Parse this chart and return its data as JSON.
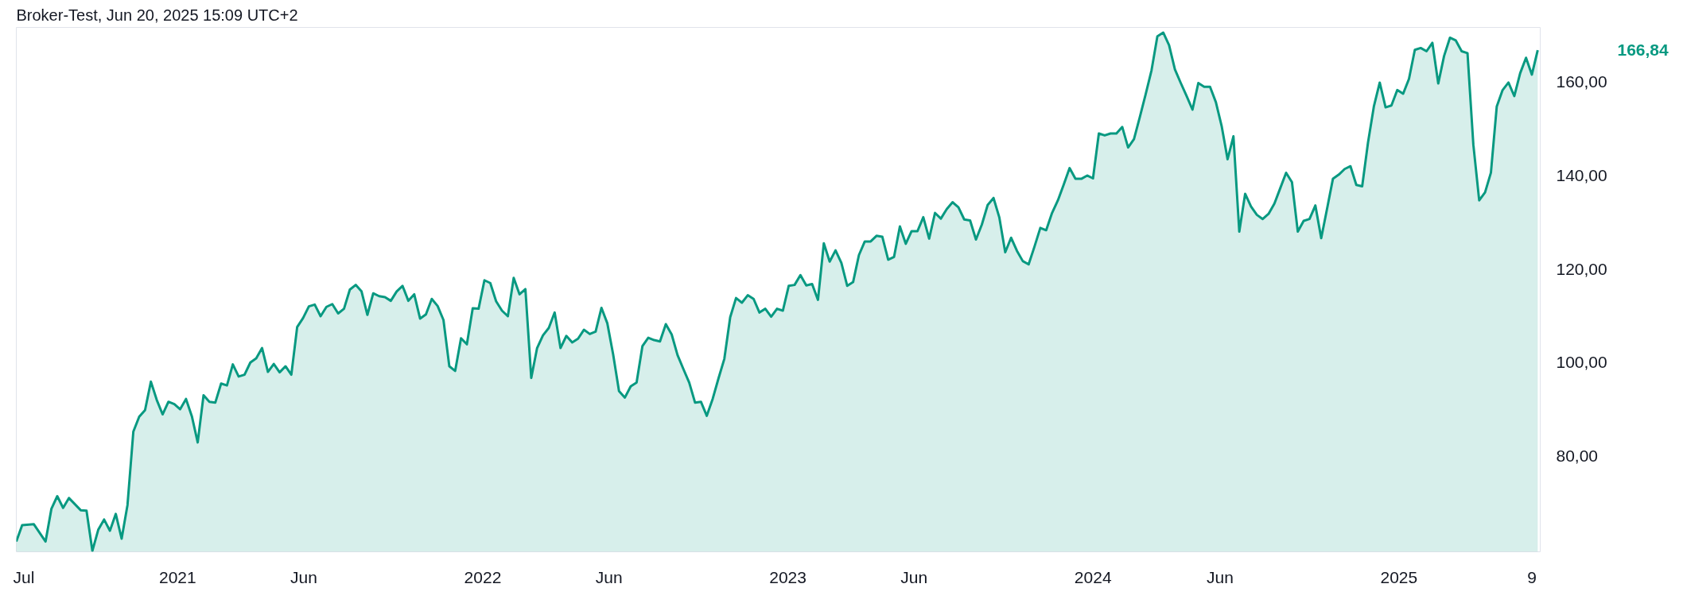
{
  "chart_data": {
    "type": "area",
    "title": "Broker-Test, Jun 20, 2025 15:09 UTC+2",
    "xlim": [
      "2020-06-22",
      "2025-06-19"
    ],
    "ylim": [
      59.5,
      171.7
    ],
    "xticks": [
      {
        "value": "2020-07-01",
        "label": "Jul"
      },
      {
        "value": "2021-01-01",
        "label": "2021"
      },
      {
        "value": "2021-06-01",
        "label": "Jun"
      },
      {
        "value": "2022-01-01",
        "label": "2022"
      },
      {
        "value": "2022-06-01",
        "label": "Jun"
      },
      {
        "value": "2023-01-01",
        "label": "2023"
      },
      {
        "value": "2023-06-01",
        "label": "Jun"
      },
      {
        "value": "2024-01-01",
        "label": "2024"
      },
      {
        "value": "2024-06-01",
        "label": "Jun"
      },
      {
        "value": "2025-01-01",
        "label": "2025"
      },
      {
        "value": "2025-06-09",
        "label": "9"
      }
    ],
    "yticks": [
      {
        "value": 80,
        "label": "80,00"
      },
      {
        "value": 100,
        "label": "100,00"
      },
      {
        "value": 120,
        "label": "120,00"
      },
      {
        "value": 140,
        "label": "140,00"
      },
      {
        "value": 160,
        "label": "160,00"
      }
    ],
    "annotations": [
      "166,84"
    ],
    "series": [
      {
        "color": "#089981",
        "x": [
          "2020-06-22",
          "2020-06-29",
          "2020-07-13",
          "2020-07-27",
          "2020-08-03",
          "2020-08-10",
          "2020-08-17",
          "2020-08-24",
          "2020-09-07",
          "2020-09-14",
          "2020-09-21",
          "2020-09-28",
          "2020-10-05",
          "2020-10-12",
          "2020-10-19",
          "2020-10-26",
          "2020-11-02",
          "2020-11-09",
          "2020-11-16",
          "2020-11-23",
          "2020-11-30",
          "2020-12-07",
          "2020-12-14",
          "2020-12-21",
          "2020-12-28",
          "2021-01-04",
          "2021-01-11",
          "2021-01-18",
          "2021-01-25",
          "2021-02-01",
          "2021-02-08",
          "2021-02-15",
          "2021-02-22",
          "2021-03-01",
          "2021-03-08",
          "2021-03-15",
          "2021-03-22",
          "2021-03-29",
          "2021-04-05",
          "2021-04-12",
          "2021-04-19",
          "2021-04-26",
          "2021-05-03",
          "2021-05-10",
          "2021-05-17",
          "2021-05-24",
          "2021-05-31",
          "2021-06-07",
          "2021-06-14",
          "2021-06-21",
          "2021-06-28",
          "2021-07-05",
          "2021-07-12",
          "2021-07-19",
          "2021-07-26",
          "2021-08-02",
          "2021-08-09",
          "2021-08-16",
          "2021-08-23",
          "2021-08-30",
          "2021-09-06",
          "2021-09-13",
          "2021-09-20",
          "2021-09-27",
          "2021-10-04",
          "2021-10-11",
          "2021-10-18",
          "2021-10-25",
          "2021-11-01",
          "2021-11-08",
          "2021-11-15",
          "2021-11-22",
          "2021-11-29",
          "2021-12-06",
          "2021-12-13",
          "2021-12-20",
          "2021-12-27",
          "2022-01-03",
          "2022-01-10",
          "2022-01-17",
          "2022-01-24",
          "2022-01-31",
          "2022-02-07",
          "2022-02-14",
          "2022-02-21",
          "2022-02-28",
          "2022-03-07",
          "2022-03-14",
          "2022-03-21",
          "2022-03-28",
          "2022-04-04",
          "2022-04-11",
          "2022-04-18",
          "2022-04-25",
          "2022-05-02",
          "2022-05-09",
          "2022-05-16",
          "2022-05-23",
          "2022-05-30",
          "2022-06-06",
          "2022-06-13",
          "2022-06-20",
          "2022-06-27",
          "2022-07-04",
          "2022-07-11",
          "2022-07-18",
          "2022-07-25",
          "2022-08-01",
          "2022-08-08",
          "2022-08-15",
          "2022-08-22",
          "2022-08-29",
          "2022-09-05",
          "2022-09-12",
          "2022-09-19",
          "2022-09-26",
          "2022-10-03",
          "2022-10-10",
          "2022-10-17",
          "2022-10-24",
          "2022-10-31",
          "2022-11-07",
          "2022-11-14",
          "2022-11-21",
          "2022-11-28",
          "2022-12-05",
          "2022-12-12",
          "2022-12-19",
          "2022-12-26",
          "2023-01-02",
          "2023-01-09",
          "2023-01-16",
          "2023-01-23",
          "2023-01-30",
          "2023-02-06",
          "2023-02-13",
          "2023-02-20",
          "2023-02-27",
          "2023-03-06",
          "2023-03-13",
          "2023-03-20",
          "2023-03-27",
          "2023-04-03",
          "2023-04-10",
          "2023-04-17",
          "2023-04-24",
          "2023-05-01",
          "2023-05-08",
          "2023-05-15",
          "2023-05-22",
          "2023-05-29",
          "2023-06-05",
          "2023-06-12",
          "2023-06-19",
          "2023-06-26",
          "2023-07-03",
          "2023-07-10",
          "2023-07-17",
          "2023-07-24",
          "2023-07-31",
          "2023-08-07",
          "2023-08-14",
          "2023-08-21",
          "2023-08-28",
          "2023-09-04",
          "2023-09-11",
          "2023-09-18",
          "2023-09-25",
          "2023-10-02",
          "2023-10-09",
          "2023-10-16",
          "2023-10-23",
          "2023-10-30",
          "2023-11-06",
          "2023-11-13",
          "2023-11-20",
          "2023-11-27",
          "2023-12-04",
          "2023-12-11",
          "2023-12-18",
          "2023-12-25",
          "2024-01-01",
          "2024-01-08",
          "2024-01-15",
          "2024-01-22",
          "2024-01-29",
          "2024-02-05",
          "2024-02-12",
          "2024-02-19",
          "2024-02-26",
          "2024-03-04",
          "2024-03-11",
          "2024-03-18",
          "2024-03-25",
          "2024-04-01",
          "2024-04-08",
          "2024-04-15",
          "2024-04-22",
          "2024-04-29",
          "2024-05-06",
          "2024-05-13",
          "2024-05-20",
          "2024-05-27",
          "2024-06-03",
          "2024-06-10",
          "2024-06-17",
          "2024-06-24",
          "2024-07-01",
          "2024-07-08",
          "2024-07-15",
          "2024-07-22",
          "2024-07-29",
          "2024-08-05",
          "2024-08-12",
          "2024-08-19",
          "2024-08-26",
          "2024-09-02",
          "2024-09-09",
          "2024-09-16",
          "2024-09-23",
          "2024-09-30",
          "2024-10-07",
          "2024-10-14",
          "2024-10-21",
          "2024-10-28",
          "2024-11-04",
          "2024-11-11",
          "2024-11-18",
          "2024-11-25",
          "2024-12-02",
          "2024-12-09",
          "2024-12-16",
          "2024-12-23",
          "2024-12-30",
          "2025-01-06",
          "2025-01-13",
          "2025-01-20",
          "2025-01-27",
          "2025-02-03",
          "2025-02-10",
          "2025-02-17",
          "2025-02-24",
          "2025-03-03",
          "2025-03-10",
          "2025-03-17",
          "2025-03-24",
          "2025-03-31",
          "2025-04-07",
          "2025-04-14",
          "2025-04-21",
          "2025-04-28",
          "2025-05-05",
          "2025-05-12",
          "2025-05-19",
          "2025-05-26",
          "2025-06-02",
          "2025-06-09",
          "2025-06-16"
        ],
        "values": [
          61.7,
          65.2,
          65.4,
          61.7,
          68.7,
          71.4,
          68.9,
          71.0,
          68.4,
          68.3,
          59.7,
          64.2,
          66.4,
          64.0,
          67.6,
          62.3,
          69.5,
          85.2,
          88.4,
          89.8,
          95.9,
          92.0,
          88.9,
          91.6,
          91.1,
          90.0,
          92.2,
          88.5,
          82.9,
          93.0,
          91.6,
          91.4,
          95.5,
          95.1,
          99.6,
          97.0,
          97.4,
          100.0,
          100.9,
          103.1,
          98.0,
          99.7,
          97.9,
          99.2,
          97.4,
          107.6,
          109.5,
          112.0,
          112.4,
          109.9,
          111.9,
          112.5,
          110.5,
          111.5,
          115.6,
          116.6,
          115.2,
          110.2,
          114.8,
          114.2,
          114.0,
          113.2,
          115.2,
          116.4,
          113.2,
          114.6,
          109.4,
          110.3,
          113.6,
          112.1,
          109.1,
          99.2,
          98.2,
          105.2,
          103.9,
          111.6,
          111.5,
          117.6,
          117.0,
          113.1,
          111.1,
          109.9,
          118.1,
          114.6,
          115.7,
          96.7,
          103.1,
          105.8,
          107.4,
          110.7,
          103.1,
          105.7,
          104.3,
          105.1,
          107.0,
          106.1,
          106.6,
          111.7,
          108.4,
          101.7,
          93.9,
          92.5,
          94.9,
          95.7,
          103.5,
          105.3,
          104.8,
          104.5,
          108.2,
          106.0,
          101.6,
          98.6,
          95.7,
          91.4,
          91.6,
          88.6,
          92.2,
          96.6,
          100.8,
          109.7,
          113.8,
          112.8,
          114.4,
          113.6,
          110.7,
          111.5,
          109.8,
          111.5,
          111.1,
          116.4,
          116.6,
          118.7,
          116.5,
          116.8,
          113.4,
          125.5,
          121.6,
          124.0,
          121.3,
          116.4,
          117.2,
          123.0,
          125.9,
          125.9,
          127.1,
          126.9,
          122.0,
          122.6,
          129.1,
          125.4,
          128.1,
          128.1,
          131.1,
          126.5,
          132.0,
          130.8,
          132.8,
          134.3,
          133.2,
          130.6,
          130.4,
          126.3,
          129.5,
          133.7,
          135.2,
          131.0,
          123.6,
          126.7,
          123.9,
          121.7,
          121.0,
          124.8,
          128.8,
          128.3,
          132.0,
          134.7,
          138.1,
          141.6,
          139.3,
          139.3,
          140.0,
          139.4,
          149.0,
          148.6,
          149.0,
          149.0,
          150.4,
          146.0,
          147.8,
          152.5,
          157.4,
          162.5,
          169.8,
          170.6,
          167.9,
          162.7,
          159.8,
          157.0,
          154.1,
          159.8,
          159.0,
          159.0,
          155.7,
          150.5,
          143.5,
          148.4,
          128.0,
          136.1,
          133.4,
          131.6,
          130.7,
          131.8,
          134.0,
          137.3,
          140.6,
          138.6,
          128.0,
          130.3,
          130.7,
          133.6,
          126.6,
          132.9,
          139.3,
          140.2,
          141.4,
          142.0,
          138.0,
          137.7,
          147.1,
          154.8,
          159.9,
          154.6,
          155.0,
          158.3,
          157.5,
          160.7,
          166.9,
          167.3,
          166.6,
          168.4,
          159.7,
          165.6,
          169.5,
          168.9,
          166.6,
          166.2,
          146.6,
          134.7,
          136.4,
          140.6,
          154.8,
          158.3,
          159.9,
          157.0,
          161.9,
          165.2,
          161.6,
          166.84
        ]
      }
    ]
  }
}
